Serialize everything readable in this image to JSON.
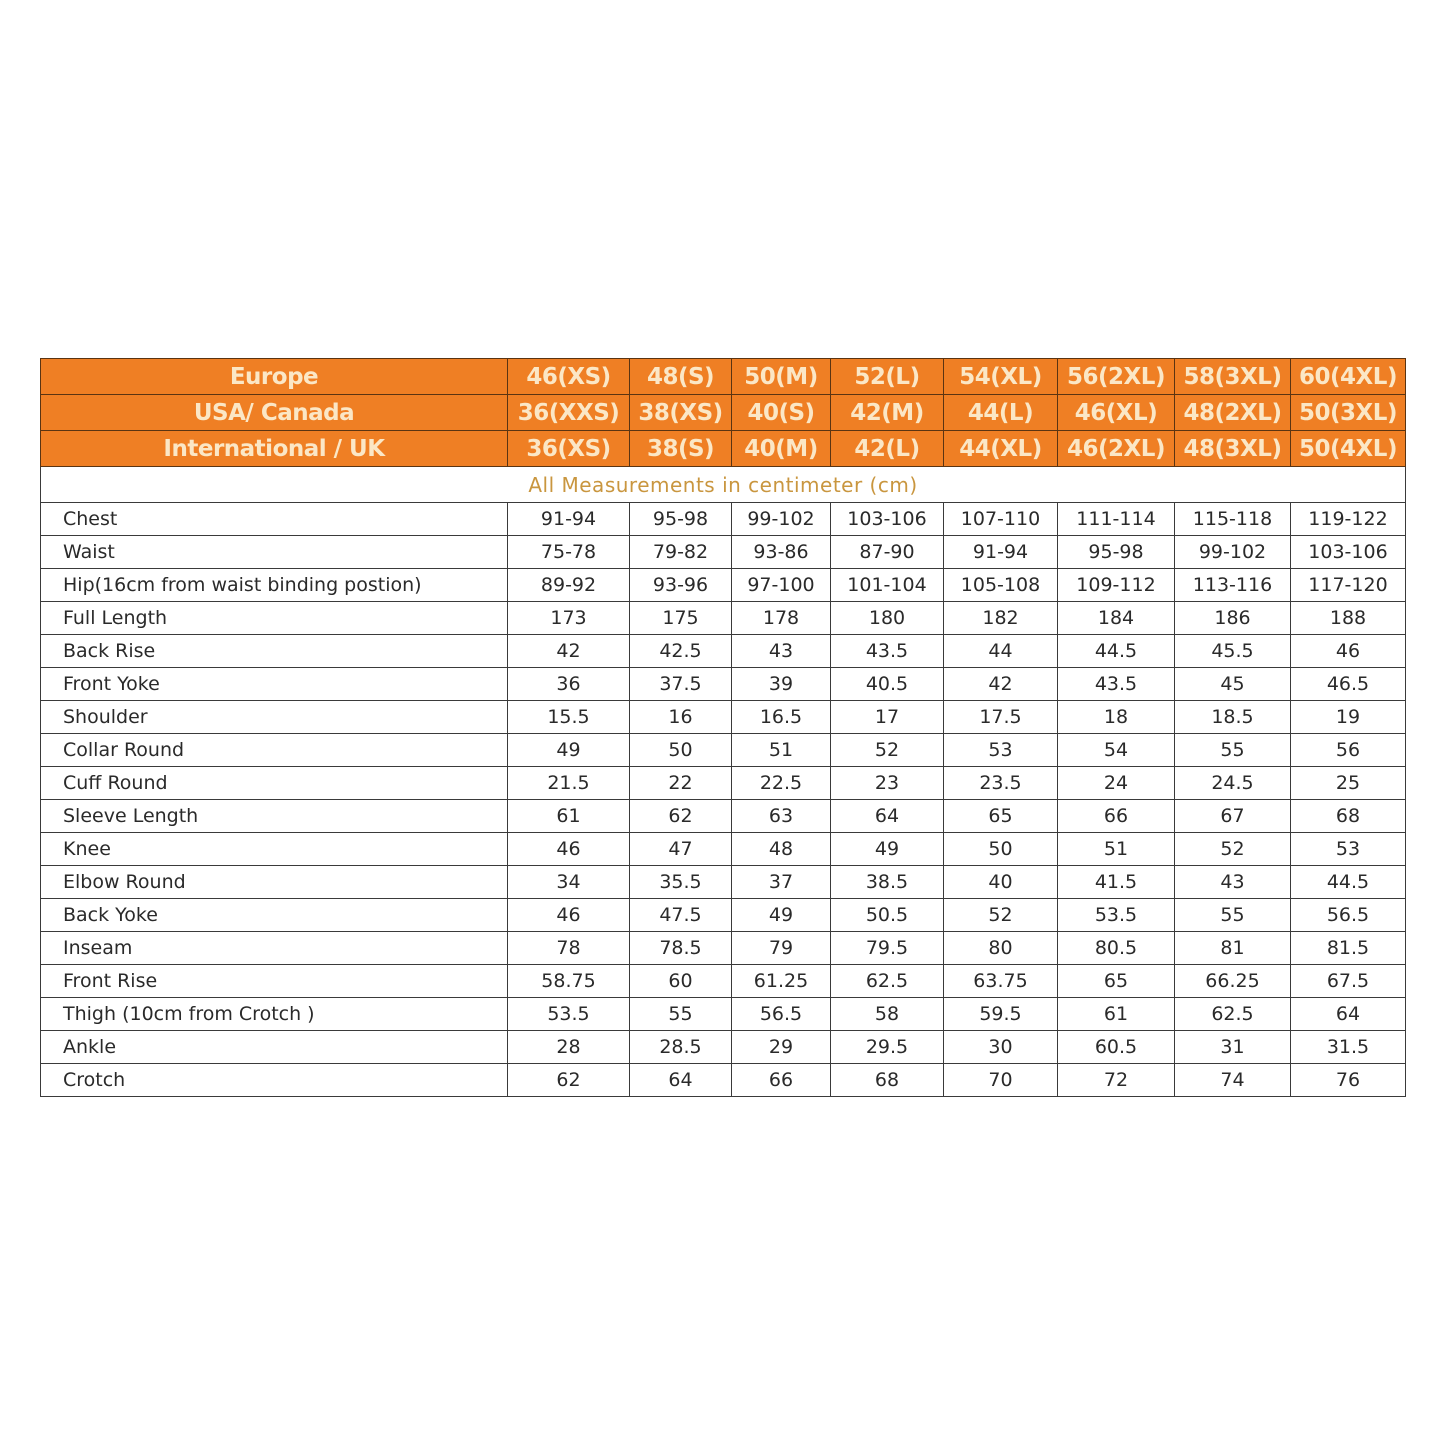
{
  "header_rows": [
    {
      "label": "Europe",
      "sizes": [
        "46(XS)",
        "48(S)",
        "50(M)",
        "52(L)",
        "54(XL)",
        "56(2XL)",
        "58(3XL)",
        "60(4XL)"
      ]
    },
    {
      "label": "USA/ Canada",
      "sizes": [
        "36(XXS)",
        "38(XS)",
        "40(S)",
        "42(M)",
        "44(L)",
        "46(XL)",
        "48(2XL)",
        "50(3XL)"
      ]
    },
    {
      "label": "International / UK",
      "sizes": [
        "36(XS)",
        "38(S)",
        "40(M)",
        "42(L)",
        "44(XL)",
        "46(2XL)",
        "48(3XL)",
        "50(4XL)"
      ]
    }
  ],
  "subtitle": "All Measurements in centimeter (cm)",
  "rows": [
    {
      "label": "Chest",
      "values": [
        "91-94",
        "95-98",
        "99-102",
        "103-106",
        "107-110",
        "111-114",
        "115-118",
        "119-122"
      ]
    },
    {
      "label": "Waist",
      "values": [
        "75-78",
        "79-82",
        "93-86",
        "87-90",
        "91-94",
        "95-98",
        "99-102",
        "103-106"
      ]
    },
    {
      "label": "Hip(16cm from waist binding postion)",
      "values": [
        "89-92",
        "93-96",
        "97-100",
        "101-104",
        "105-108",
        "109-112",
        "113-116",
        "117-120"
      ]
    },
    {
      "label": "Full Length",
      "values": [
        "173",
        "175",
        "178",
        "180",
        "182",
        "184",
        "186",
        "188"
      ]
    },
    {
      "label": "Back Rise",
      "values": [
        "42",
        "42.5",
        "43",
        "43.5",
        "44",
        "44.5",
        "45.5",
        "46"
      ]
    },
    {
      "label": "Front Yoke",
      "values": [
        "36",
        "37.5",
        "39",
        "40.5",
        "42",
        "43.5",
        "45",
        "46.5"
      ]
    },
    {
      "label": "Shoulder",
      "values": [
        "15.5",
        "16",
        "16.5",
        "17",
        "17.5",
        "18",
        "18.5",
        "19"
      ]
    },
    {
      "label": "Collar Round",
      "values": [
        "49",
        "50",
        "51",
        "52",
        "53",
        "54",
        "55",
        "56"
      ]
    },
    {
      "label": "Cuff Round",
      "values": [
        "21.5",
        "22",
        "22.5",
        "23",
        "23.5",
        "24",
        "24.5",
        "25"
      ]
    },
    {
      "label": "Sleeve Length",
      "values": [
        "61",
        "62",
        "63",
        "64",
        "65",
        "66",
        "67",
        "68"
      ]
    },
    {
      "label": "Knee",
      "values": [
        "46",
        "47",
        "48",
        "49",
        "50",
        "51",
        "52",
        "53"
      ]
    },
    {
      "label": "Elbow Round",
      "values": [
        "34",
        "35.5",
        "37",
        "38.5",
        "40",
        "41.5",
        "43",
        "44.5"
      ]
    },
    {
      "label": "Back Yoke",
      "values": [
        "46",
        "47.5",
        "49",
        "50.5",
        "52",
        "53.5",
        "55",
        "56.5"
      ]
    },
    {
      "label": "Inseam",
      "values": [
        "78",
        "78.5",
        "79",
        "79.5",
        "80",
        "80.5",
        "81",
        "81.5"
      ]
    },
    {
      "label": "Front Rise",
      "values": [
        "58.75",
        "60",
        "61.25",
        "62.5",
        "63.75",
        "65",
        "66.25",
        "67.5"
      ]
    },
    {
      "label": "Thigh (10cm from Crotch )",
      "values": [
        "53.5",
        "55",
        "56.5",
        "58",
        "59.5",
        "61",
        "62.5",
        "64"
      ]
    },
    {
      "label": "Ankle",
      "values": [
        "28",
        "28.5",
        "29",
        "29.5",
        "30",
        "60.5",
        "31",
        "31.5"
      ]
    },
    {
      "label": "Crotch",
      "values": [
        "62",
        "64",
        "66",
        "68",
        "70",
        "72",
        "74",
        "76"
      ]
    }
  ],
  "colors": {
    "header_bg": "#ef7f24",
    "header_text": "#fbe7c6",
    "subtitle_text": "#c9963f"
  }
}
